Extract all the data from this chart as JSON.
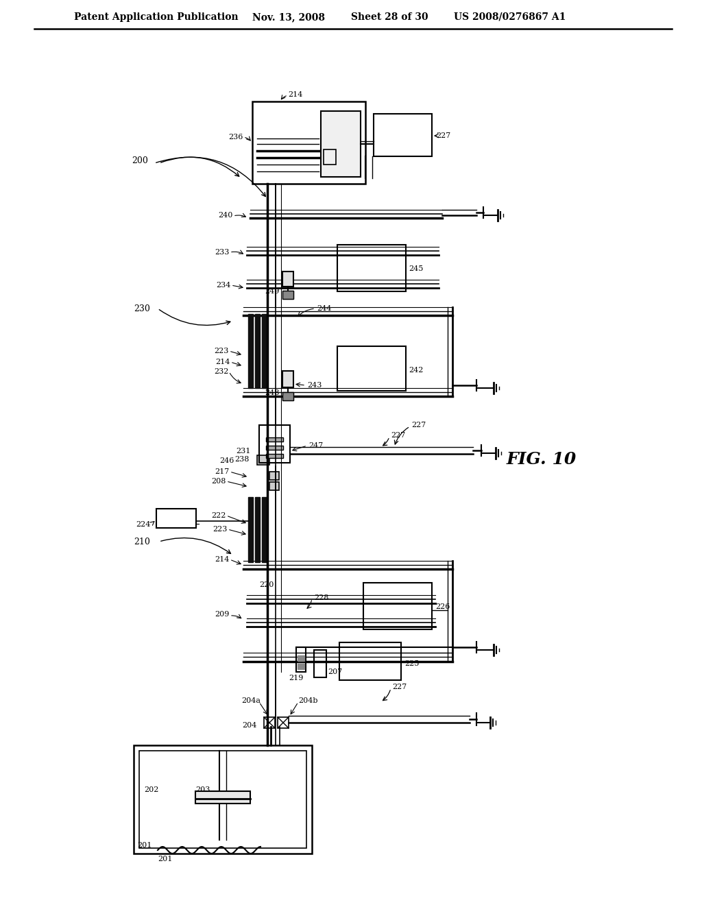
{
  "header_title": "Patent Application Publication",
  "header_date": "Nov. 13, 2008",
  "header_sheet": "Sheet 28 of 30",
  "header_patent": "US 2008/0276867 A1",
  "fig_label": "FIG. 10",
  "bg_color": "#ffffff"
}
